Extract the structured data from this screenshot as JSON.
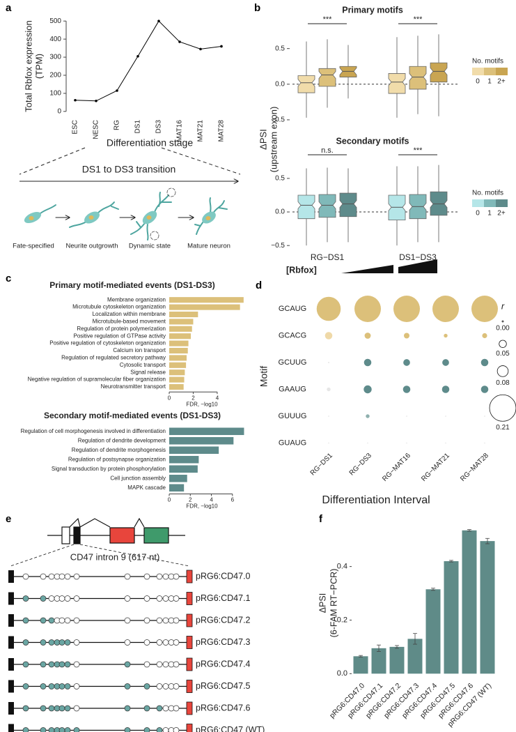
{
  "chart_data": [
    {
      "panel": "a",
      "type": "line",
      "categories": [
        "ESC",
        "NESC",
        "RG",
        "DS1",
        "DS3",
        "MAT16",
        "MAT21",
        "MAT28"
      ],
      "values": [
        62,
        58,
        115,
        305,
        500,
        385,
        345,
        360
      ],
      "color": "#000000",
      "ylim": [
        -20,
        520
      ],
      "yticks": [
        0,
        100,
        200,
        300,
        400,
        500
      ],
      "ylabel": [
        "Total Rbfox expression",
        "(TPM)"
      ],
      "xlabel": "Differentiation stage"
    },
    {
      "panel": "b",
      "type": "box",
      "title": "Primary motifs",
      "ylabel": [
        "ΔPSI",
        "(upstream exon)"
      ],
      "ylim": [
        -0.55,
        0.8
      ],
      "yticks": [
        {
          "value": -0.5,
          "label": "−0.5"
        },
        {
          "value": 0,
          "label": "0.0"
        },
        0.5
      ],
      "annotations": [
        "***",
        "***"
      ],
      "legend_title": "No. motifs",
      "series": [
        {
          "name": "0",
          "color": "#f1dcaa",
          "boxes": [
            {
              "low": -0.47,
              "q1": -0.12,
              "median": 0.02,
              "q3": 0.12,
              "high": 0.6
            },
            {
              "low": -0.47,
              "q1": -0.13,
              "median": 0.03,
              "q3": 0.15,
              "high": 0.66
            }
          ]
        },
        {
          "name": "1",
          "color": "#dcc07a",
          "boxes": [
            {
              "low": -0.33,
              "q1": -0.03,
              "median": 0.13,
              "q3": 0.22,
              "high": 0.63
            },
            {
              "low": -0.42,
              "q1": -0.07,
              "median": 0.1,
              "q3": 0.25,
              "high": 0.68
            }
          ]
        },
        {
          "name": "2+",
          "color": "#c9a552",
          "boxes": [
            {
              "low": -0.2,
              "q1": 0.1,
              "median": 0.18,
              "q3": 0.25,
              "high": 0.55
            },
            {
              "low": -0.45,
              "q1": 0.03,
              "median": 0.18,
              "q3": 0.3,
              "high": 0.7
            }
          ]
        }
      ]
    },
    {
      "type": "box",
      "title": "Secondary motifs",
      "categories": [
        "RG−DS1",
        "DS1−DS3"
      ],
      "gradient_label": "[Rbfox]",
      "ylim": [
        -0.55,
        0.8
      ],
      "yticks": [
        {
          "value": -0.5,
          "label": "−0.5"
        },
        {
          "value": 0,
          "label": "0.0"
        },
        0.5
      ],
      "annotations": [
        "n.s.",
        "***"
      ],
      "legend_title": "No. motifs",
      "series": [
        {
          "name": "0",
          "color": "#b5e6e8",
          "boxes": [
            {
              "low": -0.5,
              "q1": -0.1,
              "median": 0.1,
              "q3": 0.25,
              "high": 0.65
            },
            {
              "low": -0.5,
              "q1": -0.12,
              "median": 0.07,
              "q3": 0.25,
              "high": 0.68
            }
          ]
        },
        {
          "name": "1",
          "color": "#80b9b9",
          "boxes": [
            {
              "low": -0.45,
              "q1": -0.08,
              "median": 0.1,
              "q3": 0.26,
              "high": 0.66
            },
            {
              "low": -0.45,
              "q1": -0.1,
              "median": 0.08,
              "q3": 0.26,
              "high": 0.68
            }
          ]
        },
        {
          "name": "2+",
          "color": "#5e8b8b",
          "boxes": [
            {
              "low": -0.45,
              "q1": -0.07,
              "median": 0.12,
              "q3": 0.28,
              "high": 0.65
            },
            {
              "low": -0.45,
              "q1": -0.05,
              "median": 0.12,
              "q3": 0.3,
              "high": 0.7
            }
          ]
        }
      ]
    },
    {
      "panel": "c",
      "type": "barh",
      "title": "Primary motif-mediated events (DS1-DS3)",
      "categories": [
        "Membrane organization",
        "Microtubule cytoskeleton organization",
        "Localization within membrane",
        "Microtubule-based movement",
        "Regulation of protein polymerization",
        "Positive regulation of GTPase activity",
        "Positive regulation of cytoskeleton organization",
        "Calcium ion transport",
        "Regulation of regulated secretory pathway",
        "Cytosolic transport",
        "Signal release",
        "Negative regulation of supramolecular fiber organization",
        "Neurotransmitter transport"
      ],
      "values": [
        6.2,
        5.9,
        2.4,
        2.0,
        1.9,
        1.8,
        1.6,
        1.55,
        1.45,
        1.4,
        1.3,
        1.25,
        1.2
      ],
      "color": "#dcc07a",
      "xlim": [
        0,
        6.5
      ],
      "xticks": [
        0,
        2,
        4
      ],
      "xlabel": "FDR, −log10"
    },
    {
      "type": "barh",
      "title": "Secondary motif-mediated events (DS1-DS3)",
      "categories": [
        "Regulation of cell morphogenesis involved in differentiation",
        "Regulation of dendrite development",
        "Regulation of dendrite morphogenesis",
        "Regulation of postsynapse organization",
        "Signal transduction by protein phosphorylation",
        "Cell junction assembly",
        "MAPK cascade"
      ],
      "values": [
        7.1,
        6.1,
        4.7,
        2.8,
        2.7,
        1.7,
        1.4
      ],
      "color": "#5e8b8b",
      "xlim": [
        0,
        7.4
      ],
      "xticks": [
        0,
        2,
        4,
        6
      ],
      "xlabel": "FDR, −log10"
    },
    {
      "panel": "d",
      "type": "bubble",
      "ylabel": "Motif",
      "xlabel": "Differentiation Interval",
      "categories": [
        "RG−DS1",
        "RG−DS3",
        "RG−MAT16",
        "RG−MAT21",
        "RG−MAT28"
      ],
      "series": [
        {
          "name": "GCAUG",
          "values": [
            0.19,
            0.21,
            0.21,
            0.21,
            0.21
          ],
          "colors": [
            "#dcc07a",
            "#dcc07a",
            "#dcc07a",
            "#dcc07a",
            "#dcc07a"
          ]
        },
        {
          "name": "GCACG",
          "values": [
            0.05,
            0.04,
            0.035,
            0.02,
            0.03
          ],
          "colors": [
            "#efd9a8",
            "#dcc07a",
            "#dcc07a",
            "#dcc07a",
            "#dcc07a"
          ]
        },
        {
          "name": "GCUUG",
          "values": [
            0.0,
            0.05,
            0.045,
            0.045,
            0.05
          ],
          "colors": [
            "#e6e6e6",
            "#5e8b8b",
            "#5e8b8b",
            "#5e8b8b",
            "#5e8b8b"
          ]
        },
        {
          "name": "GAAUG",
          "values": [
            0.02,
            0.055,
            0.05,
            0.05,
            0.05
          ],
          "colors": [
            "#e6e6e6",
            "#5e8b8b",
            "#5e8b8b",
            "#5e8b8b",
            "#5e8b8b"
          ]
        },
        {
          "name": "GUUUG",
          "values": [
            0.0,
            0.02,
            0.0,
            0.0,
            0.0
          ],
          "colors": [
            "#ececec",
            "#8fb0ae",
            "#ececec",
            "#ececec",
            "#ececec"
          ]
        },
        {
          "name": "GUAUG",
          "values": [
            0.0,
            0.0,
            0.0,
            0.0,
            0.0
          ],
          "colors": [
            "#ececec",
            "#ececec",
            "#ececec",
            "#ececec",
            "#ececec"
          ]
        }
      ],
      "size_legend": {
        "title": "r",
        "values": [
          {
            "value": 0,
            "label": "0.00"
          },
          {
            "value": 0.05,
            "label": "0.05"
          },
          {
            "value": 0.08,
            "label": "0.08"
          },
          {
            "value": 0.21,
            "label": "0.21"
          }
        ]
      }
    },
    {
      "panel": "f",
      "type": "bar",
      "ylabel": [
        "ΔPSI",
        "(6-FAM RT−PCR)"
      ],
      "categories": [
        "pRG6:CD47.0",
        "pRG6:CD47.1",
        "pRG6:CD47.2",
        "pRG6:CD47.3",
        "pRG6:CD47.4",
        "pRG6:CD47.5",
        "pRG6:CD47.6",
        "pRG6:CD47 (WT)"
      ],
      "values": [
        0.065,
        0.095,
        0.1,
        0.13,
        0.315,
        0.42,
        0.535,
        0.495
      ],
      "errors": [
        0.003,
        0.012,
        0.005,
        0.02,
        0.004,
        0.003,
        0.003,
        0.01
      ],
      "color": "#5f8b88",
      "ylim": [
        -0.02,
        0.55
      ],
      "yticks": [
        {
          "value": 0,
          "label": "0.0"
        },
        0.2,
        0.4
      ]
    }
  ],
  "diagram_a": {
    "title": "DS1 to DS3 transition",
    "stages": [
      "Fate-specified",
      "Neurite outgrowth",
      "Dynamic state",
      "Mature neuron"
    ]
  },
  "diagram_e": {
    "panel": "e",
    "intron_label": "CD47 intron 9 (617 nt)",
    "constructs": [
      "pRG6:CD47.0",
      "pRG6:CD47.1",
      "pRG6:CD47.2",
      "pRG6:CD47.3",
      "pRG6:CD47.4",
      "pRG6:CD47.5",
      "pRG6:CD47.6",
      "pRG6:CD47 (WT)"
    ]
  }
}
